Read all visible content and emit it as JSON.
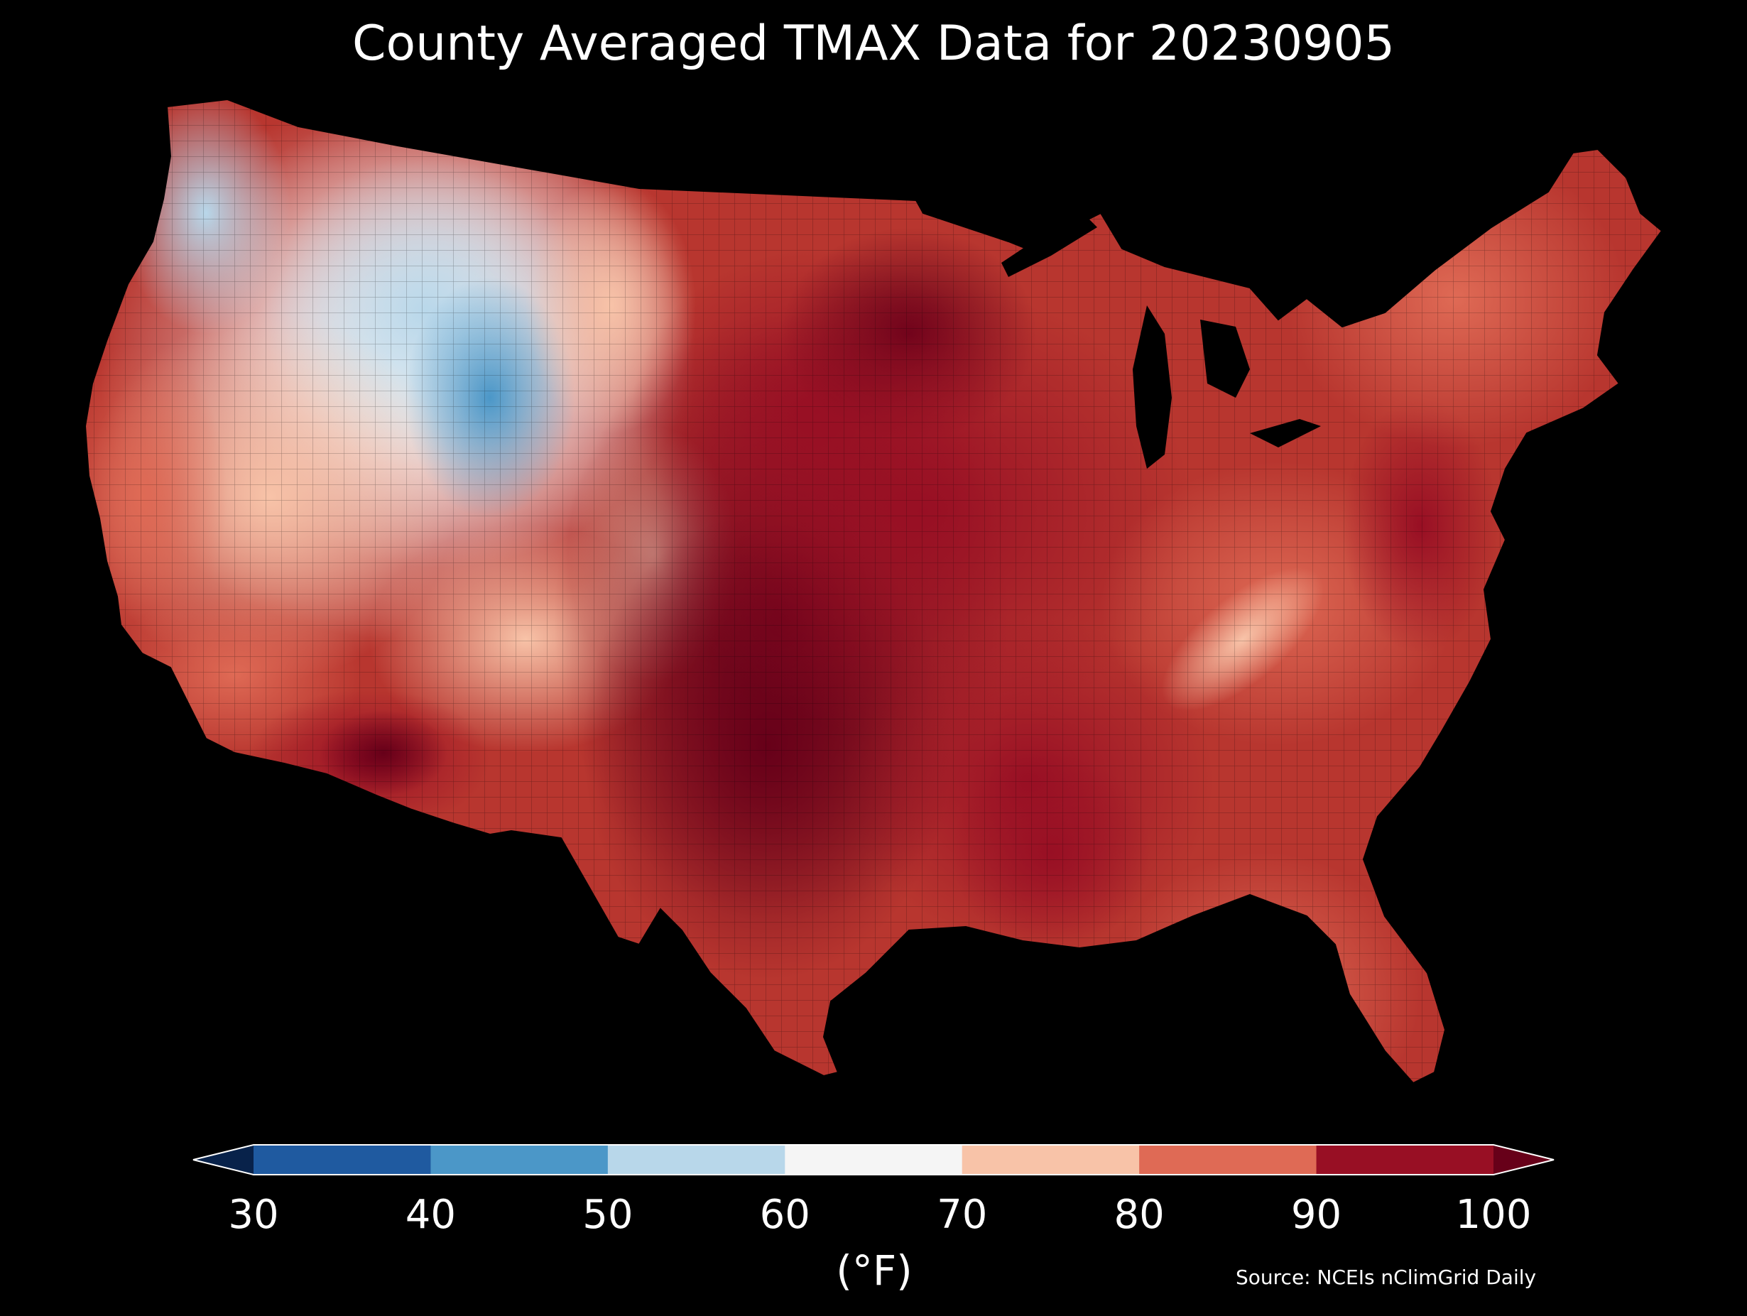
{
  "title": "County Averaged TMAX Data for 20230905",
  "colorbar": {
    "unit_label": "(°F)",
    "ticks": [
      "30",
      "40",
      "50",
      "60",
      "70",
      "80",
      "90",
      "100"
    ],
    "bins": [
      {
        "range": [
          20,
          30
        ],
        "color": "#08224a"
      },
      {
        "range": [
          30,
          40
        ],
        "color": "#1f5aa0"
      },
      {
        "range": [
          40,
          50
        ],
        "color": "#4b97c8"
      },
      {
        "range": [
          50,
          60
        ],
        "color": "#b8d7ea"
      },
      {
        "range": [
          60,
          70
        ],
        "color": "#f5f5f5"
      },
      {
        "range": [
          70,
          80
        ],
        "color": "#f8c3a8"
      },
      {
        "range": [
          80,
          90
        ],
        "color": "#df6a55"
      },
      {
        "range": [
          90,
          100
        ],
        "color": "#980f24"
      },
      {
        "range": [
          100,
          110
        ],
        "color": "#670019"
      }
    ]
  },
  "source": "Source: NCEIs nClimGrid Daily",
  "colors": {
    "background": "#000000",
    "state_border": "#000000"
  }
}
